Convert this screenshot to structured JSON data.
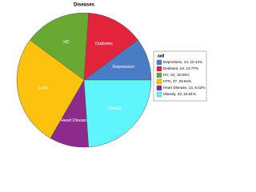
{
  "chart_data": {
    "type": "pie",
    "title": "Diseases",
    "categories": [
      "Depression",
      "Diabetes",
      "HC",
      "HTN",
      "Heart Disease",
      "Obesity"
    ],
    "values": [
      14,
      19,
      22,
      37,
      13,
      33
    ],
    "colors": [
      "#4a7cc6",
      "#e2233c",
      "#6aa834",
      "#fdc20e",
      "#8c2b8c",
      "#5ef6fc"
    ],
    "legend_title": "aa8",
    "legend_labels": [
      "Depression, 14, 10.14%",
      "Diabetes, 19, 13.77%",
      "HC, 22, 15.94%",
      "HTN, 37, 26.81%",
      "Heart Disease, 13, 9.42%",
      "Obesity, 33, 23.91%"
    ],
    "legend": "right"
  }
}
